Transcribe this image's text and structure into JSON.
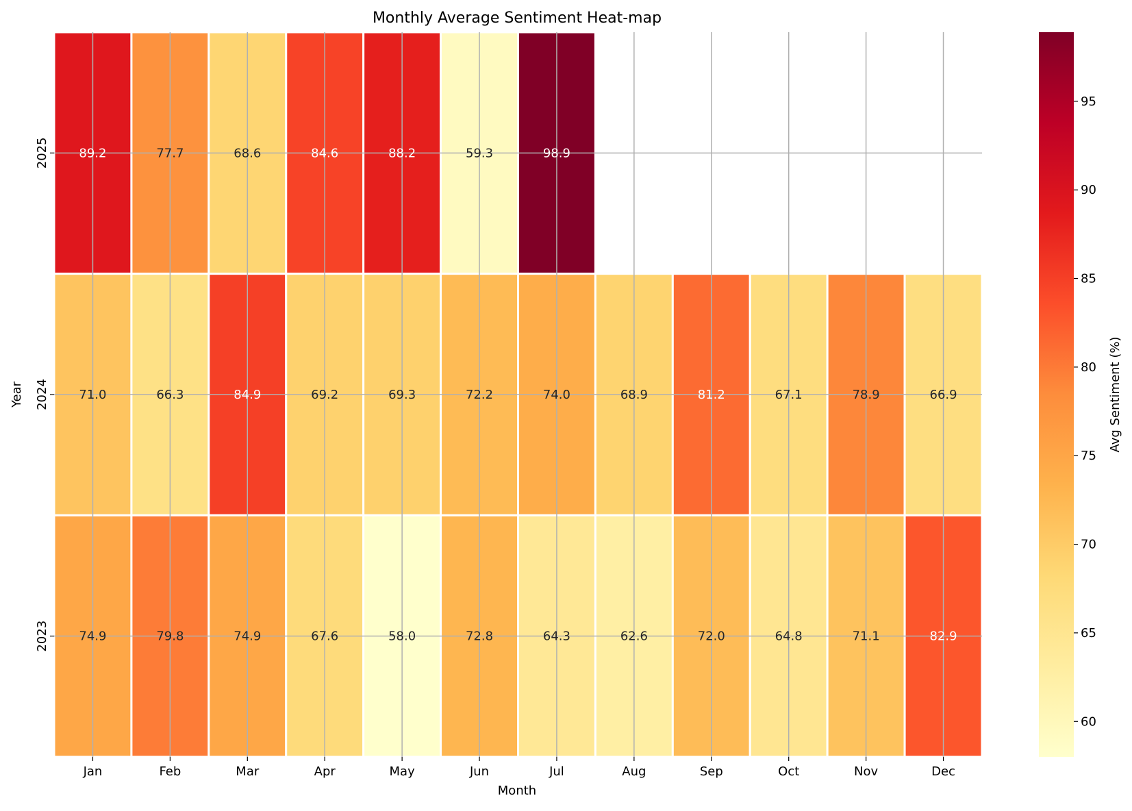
{
  "chart_data": {
    "type": "heatmap",
    "title": "Monthly Average Sentiment Heat-map",
    "xlabel": "Month",
    "ylabel": "Year",
    "x_categories": [
      "Jan",
      "Feb",
      "Mar",
      "Apr",
      "May",
      "Jun",
      "Jul",
      "Aug",
      "Sep",
      "Oct",
      "Nov",
      "Dec"
    ],
    "y_categories": [
      "2025",
      "2024",
      "2023"
    ],
    "values": [
      [
        89.2,
        77.7,
        68.6,
        84.6,
        88.2,
        59.3,
        98.9,
        null,
        null,
        null,
        null,
        null
      ],
      [
        71.0,
        66.3,
        84.9,
        69.2,
        69.3,
        72.2,
        74.0,
        68.9,
        81.2,
        67.1,
        78.9,
        66.9
      ],
      [
        74.9,
        79.8,
        74.9,
        67.6,
        58.0,
        72.8,
        64.3,
        62.6,
        72.0,
        64.8,
        71.1,
        82.9
      ]
    ],
    "value_labels": [
      [
        "89.2",
        "77.7",
        "68.6",
        "84.6",
        "88.2",
        "59.3",
        "98.9",
        "",
        "",
        "",
        "",
        ""
      ],
      [
        "71.0",
        "66.3",
        "84.9",
        "69.2",
        "69.3",
        "72.2",
        "74.0",
        "68.9",
        "81.2",
        "67.1",
        "78.9",
        "66.9"
      ],
      [
        "74.9",
        "79.8",
        "74.9",
        "67.6",
        "58.0",
        "72.8",
        "64.3",
        "62.6",
        "72.0",
        "64.8",
        "71.1",
        "82.9"
      ]
    ],
    "colorbar": {
      "label": "Avg Sentiment (%)",
      "range": [
        58.0,
        98.9
      ],
      "ticks": [
        60,
        65,
        70,
        75,
        80,
        85,
        90,
        95
      ],
      "tick_labels": [
        "60",
        "65",
        "70",
        "75",
        "80",
        "85",
        "90",
        "95"
      ],
      "colormap": "YlOrRd"
    },
    "grid": true,
    "colors": {
      "cmap_stops": [
        "#ffffcc",
        "#ffeda0",
        "#fed976",
        "#feb24c",
        "#fd8d3c",
        "#fc4e2a",
        "#e31a1c",
        "#bd0026",
        "#800026"
      ],
      "grid": "#b0b0b0",
      "cell_border": "#ffffff"
    }
  }
}
